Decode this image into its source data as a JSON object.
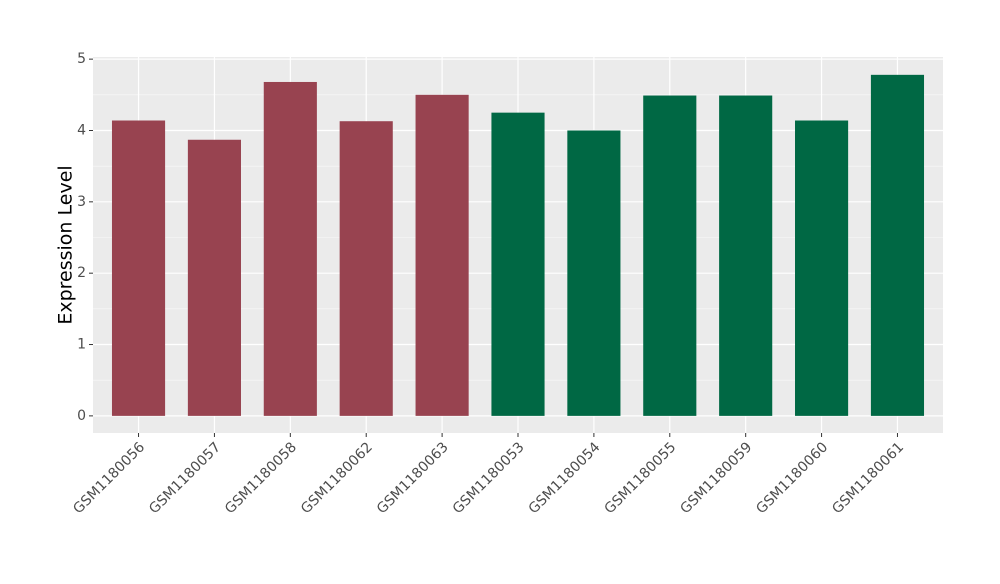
{
  "chart_data": {
    "type": "bar",
    "y_label": "Expression Level",
    "categories": [
      "GSM1180056",
      "GSM1180057",
      "GSM1180058",
      "GSM1180062",
      "GSM1180063",
      "GSM1180053",
      "GSM1180054",
      "GSM1180055",
      "GSM1180059",
      "GSM1180060",
      "GSM1180061"
    ],
    "values": [
      4.14,
      3.87,
      4.68,
      4.13,
      4.5,
      4.25,
      4.0,
      4.49,
      4.49,
      4.14,
      4.78
    ],
    "colors": [
      "#984350",
      "#984350",
      "#984350",
      "#984350",
      "#984350",
      "#006844",
      "#006844",
      "#006844",
      "#006844",
      "#006844",
      "#006844"
    ],
    "ylim": [
      -0.24,
      5.03
    ],
    "yticks": [
      0,
      1,
      2,
      3,
      4,
      5
    ],
    "grid": true
  }
}
